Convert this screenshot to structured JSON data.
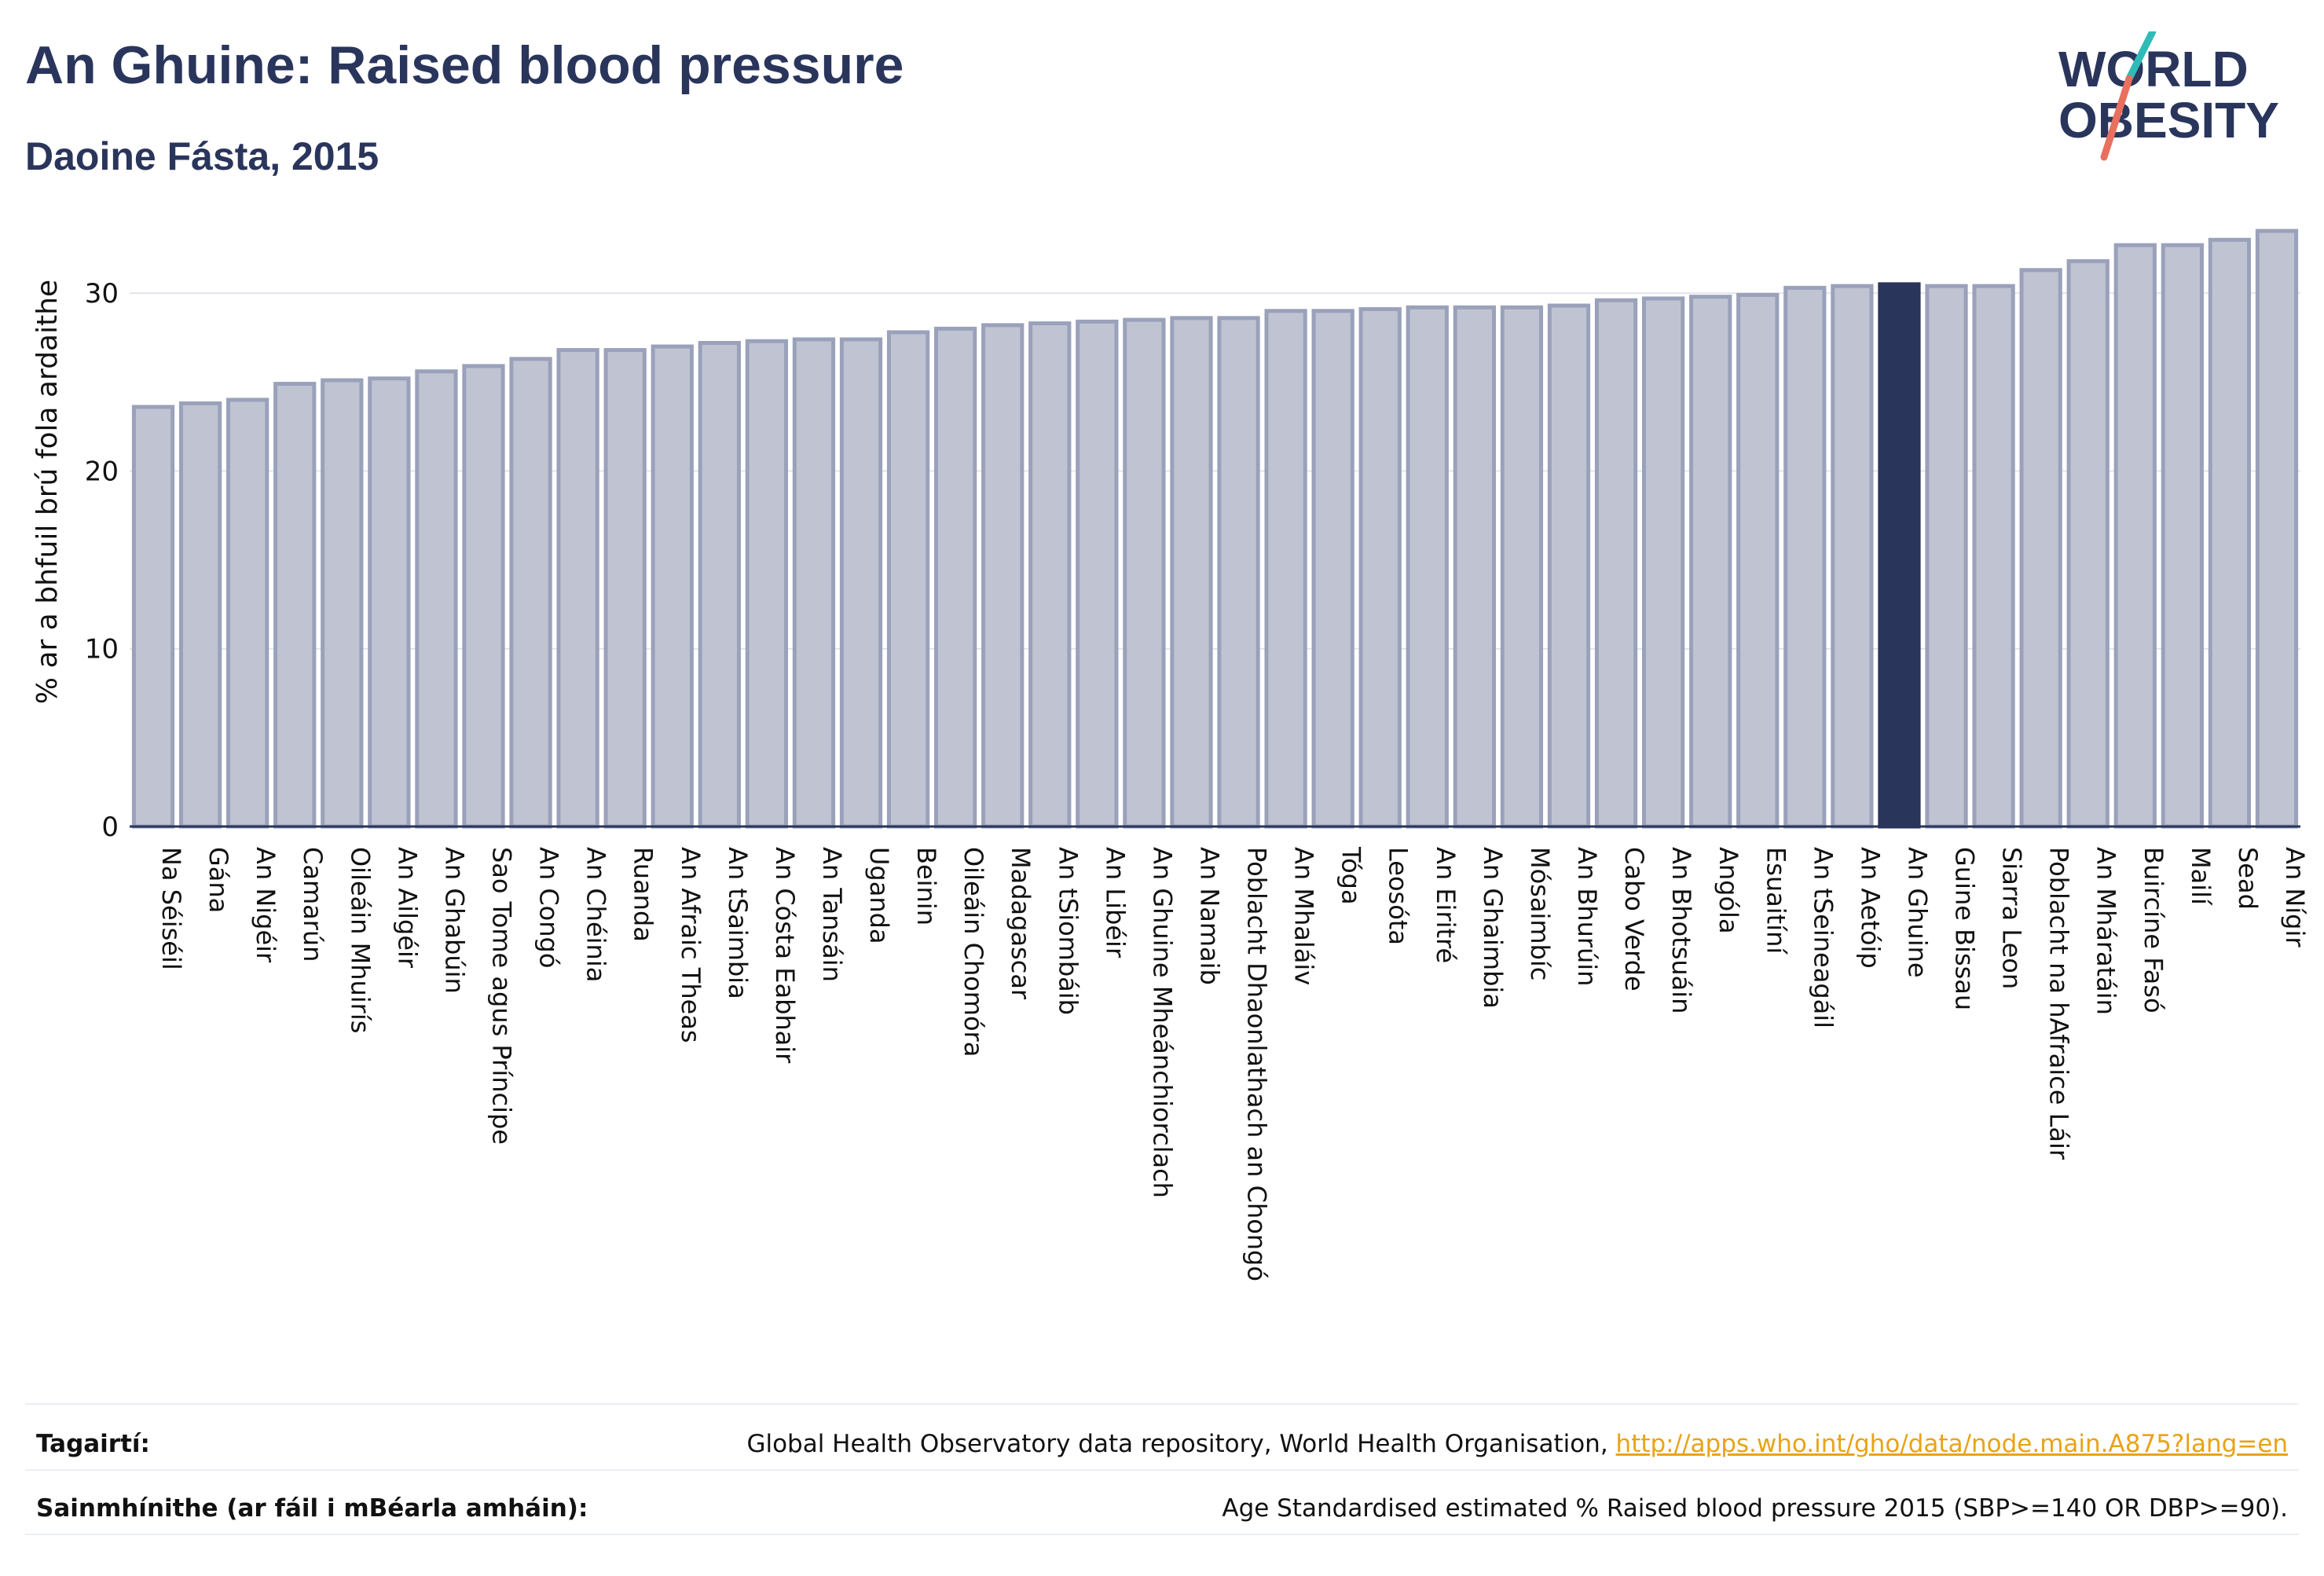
{
  "header": {
    "title": "An Ghuine: Raised blood pressure",
    "subtitle": "Daoine Fásta, 2015"
  },
  "logo": {
    "line1": "WORLD",
    "line2": "OBESITY",
    "colors": {
      "text": "#2a355c",
      "slash_teal": "#2fbcb8",
      "slash_coral": "#e8705e"
    }
  },
  "colors": {
    "bar": "#c0c4d2",
    "bar_border": "#9aa1ba",
    "highlight": "#2a355c",
    "grid": "#e3e5ec",
    "axis": "#2a355c"
  },
  "chart_data": {
    "type": "bar",
    "title": "An Ghuine: Raised blood pressure",
    "subtitle": "Daoine Fásta, 2015",
    "ylabel": "% ar a bhfuil brú fola ardaithe",
    "xlabel": "",
    "ylim": [
      0,
      35
    ],
    "yticks": [
      0,
      10,
      20,
      30
    ],
    "grid": true,
    "highlight_category": "An Ghuine",
    "categories": [
      "Na Séiséil",
      "Gána",
      "An Nigéir",
      "Camarún",
      "Oileáin Mhuirís",
      "An Ailgéir",
      "An Ghabúin",
      "Sao Tome agus Príncipe",
      "An Congó",
      "An Chéinia",
      "Ruanda",
      "An Afraic Theas",
      "An tSaimbia",
      "An Cósta Eabhair",
      "An Tansáin",
      "Uganda",
      "Beinin",
      "Oileáin Chomóra",
      "Madagascar",
      "An tSiombáib",
      "An Libéir",
      "An Ghuine Mheánchiorclach",
      "An Namaib",
      "Poblacht Dhaonlathach an Chongó",
      "An Mhaláiv",
      "Tóga",
      "Leosóta",
      "An Eiritré",
      "An Ghaimbia",
      "Mósaimbíc",
      "An Bhurúin",
      "Cabo Verde",
      "An Bhotsuáin",
      "Angóla",
      "Esuaitíní",
      "An tSeineagáil",
      "An Aetóip",
      "An Ghuine",
      "Guine Bissau",
      "Siarra Leon",
      "Poblacht na hAfraice Láir",
      "An Mháratáin",
      "Buircíne Fasó",
      "Mailí",
      "Sead",
      "An Nígir"
    ],
    "values": [
      23.6,
      23.8,
      24.0,
      24.9,
      25.1,
      25.2,
      25.6,
      25.9,
      26.3,
      26.8,
      26.8,
      27.0,
      27.2,
      27.3,
      27.4,
      27.4,
      27.8,
      28.0,
      28.2,
      28.3,
      28.4,
      28.5,
      28.6,
      28.6,
      29.0,
      29.0,
      29.1,
      29.2,
      29.2,
      29.2,
      29.3,
      29.6,
      29.7,
      29.8,
      29.9,
      30.3,
      30.4,
      30.5,
      30.4,
      30.4,
      31.3,
      31.8,
      32.7,
      32.7,
      33.0,
      33.5
    ]
  },
  "footer": {
    "references_label": "Tagairtí:",
    "references_text": "Global Health Observatory data repository, World Health Organisation, ",
    "references_link": "http://apps.who.int/gho/data/node.main.A875?lang=en",
    "definitions_label": "Sainmhínithe (ar fáil i mBéarla amháin):",
    "definitions_text": "Age Standardised estimated % Raised blood pressure 2015 (SBP>=140 OR DBP>=90)."
  }
}
